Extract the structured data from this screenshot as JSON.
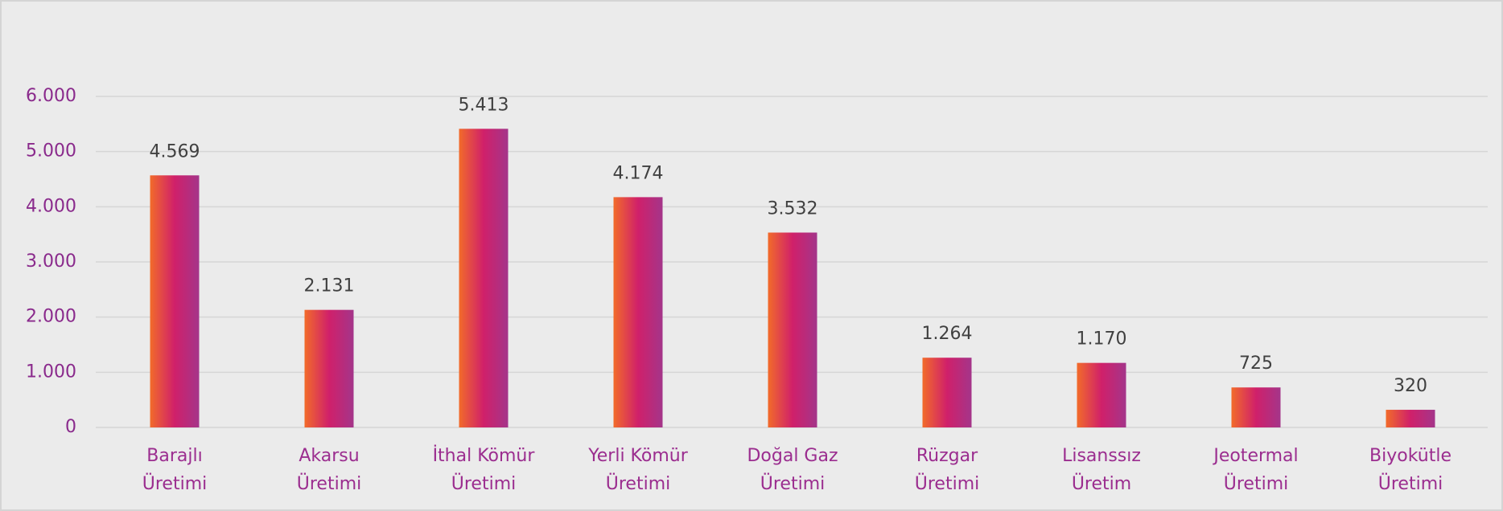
{
  "chart_data": {
    "type": "bar",
    "categories": [
      [
        "Barajlı",
        "Üretimi"
      ],
      [
        "Akarsu",
        "Üretimi"
      ],
      [
        "İthal Kömür",
        "Üretimi"
      ],
      [
        "Yerli Kömür",
        "Üretimi"
      ],
      [
        "Doğal Gaz",
        "Üretimi"
      ],
      [
        "Rüzgar",
        "Üretimi"
      ],
      [
        "Lisanssız",
        "Üretim"
      ],
      [
        "Jeotermal",
        "Üretimi"
      ],
      [
        "Biyokütle",
        "Üretimi"
      ]
    ],
    "values": [
      4569,
      2131,
      5413,
      4174,
      3532,
      1264,
      1170,
      725,
      320
    ],
    "value_labels": [
      "4.569",
      "2.131",
      "5.413",
      "4.174",
      "3.532",
      "1.264",
      "1.170",
      "725",
      "320"
    ],
    "colors": [
      "#f26b2a",
      "#d0206a",
      "#a4358a"
    ],
    "ylim": [
      0,
      6000
    ],
    "yticks": [
      0,
      {
        "value": 1000,
        "label": "1.000"
      },
      {
        "value": 2000,
        "label": "2.000"
      },
      {
        "value": 3000,
        "label": "3.000"
      },
      {
        "value": 4000,
        "label": "4.000"
      },
      {
        "value": 5000,
        "label": "5.000"
      },
      {
        "value": 6000,
        "label": "6.000"
      }
    ],
    "grid": true
  }
}
